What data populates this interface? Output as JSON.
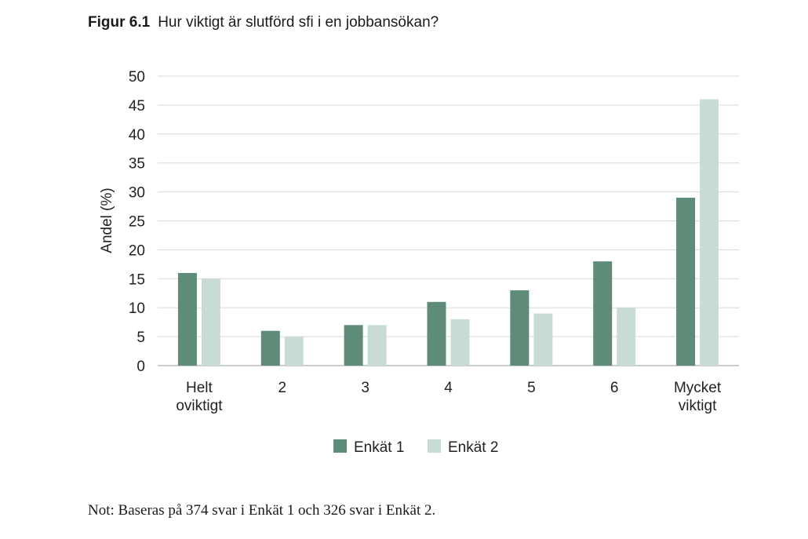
{
  "figure": {
    "number": "Figur 6.1",
    "title": "Hur viktigt är slutförd sfi i en jobbansökan?",
    "note": "Not: Baseras på 374 svar i Enkät 1 och 326 svar i Enkät 2."
  },
  "chart_data": {
    "type": "bar",
    "title": "Hur viktigt är slutförd sfi i en jobbansökan?",
    "xlabel": "",
    "ylabel": "Andel (%)",
    "ylim": [
      0,
      50
    ],
    "yticks": [
      0,
      5,
      10,
      15,
      20,
      25,
      30,
      35,
      40,
      45,
      50
    ],
    "grid": true,
    "legend_position": "bottom",
    "categories": [
      [
        "Helt",
        "oviktigt"
      ],
      [
        "2"
      ],
      [
        "3"
      ],
      [
        "4"
      ],
      [
        "5"
      ],
      [
        "6"
      ],
      [
        "Mycket",
        "viktigt"
      ]
    ],
    "series": [
      {
        "name": "Enkät 1",
        "color": "#5e8c78",
        "values": [
          16,
          6,
          7,
          11,
          13,
          18,
          29
        ]
      },
      {
        "name": "Enkät 2",
        "color": "#c9dcd4",
        "values": [
          15,
          5,
          7,
          8,
          9,
          10,
          46
        ]
      }
    ]
  }
}
